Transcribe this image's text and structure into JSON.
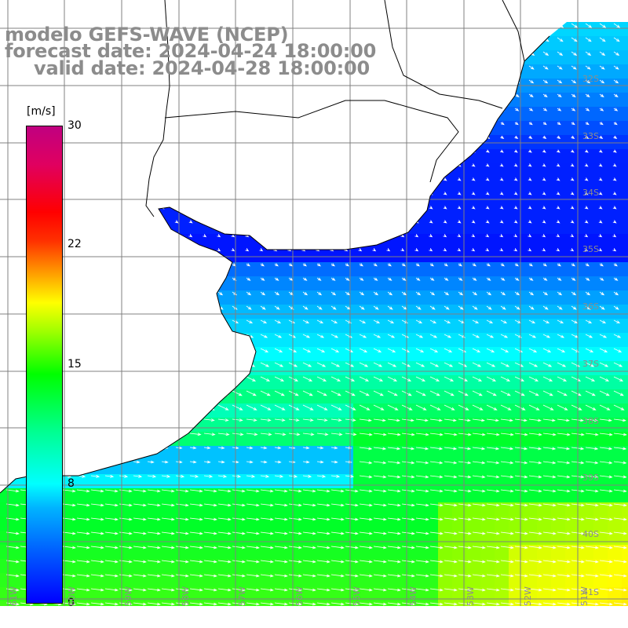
{
  "title": {
    "line1": "modelo GEFS-WAVE (NCEP)",
    "line2": "forecast date: 2024-04-24 18:00:00",
    "line3": "valid date: 2024-04-28 18:00:00"
  },
  "colorbar": {
    "unit": "[m/s]",
    "ticks": [
      "30",
      "22",
      "15",
      "8",
      "0"
    ],
    "range": [
      0,
      30
    ],
    "colors": [
      "#0000ff",
      "#00b4ff",
      "#00ffff",
      "#00ff00",
      "#ffff00",
      "#ff0000",
      "#c00080"
    ]
  },
  "map": {
    "variable": "wind speed with direction arrows",
    "lat_labels": [
      "32S",
      "33S",
      "34S",
      "35S",
      "36S",
      "37S",
      "38S",
      "39S",
      "40S",
      "41S"
    ],
    "lon_labels": [
      "61W",
      "60W",
      "59W",
      "58W",
      "57W",
      "56W",
      "55W",
      "54W",
      "53W",
      "52W",
      "51W"
    ],
    "grid_lines": true,
    "land_color": "#ffffff",
    "coastline_color": "#000000",
    "arrow_color": "#ffffff",
    "grid_color": "#808080",
    "wind_regions": [
      {
        "area": "Rio de la Plata estuary",
        "speed_ms": 1
      },
      {
        "area": "off Brazil/Uruguay coast",
        "speed_ms": 3
      },
      {
        "area": "central shelf",
        "speed_ms": 7
      },
      {
        "area": "southern open ocean",
        "speed_ms": 13
      }
    ]
  }
}
